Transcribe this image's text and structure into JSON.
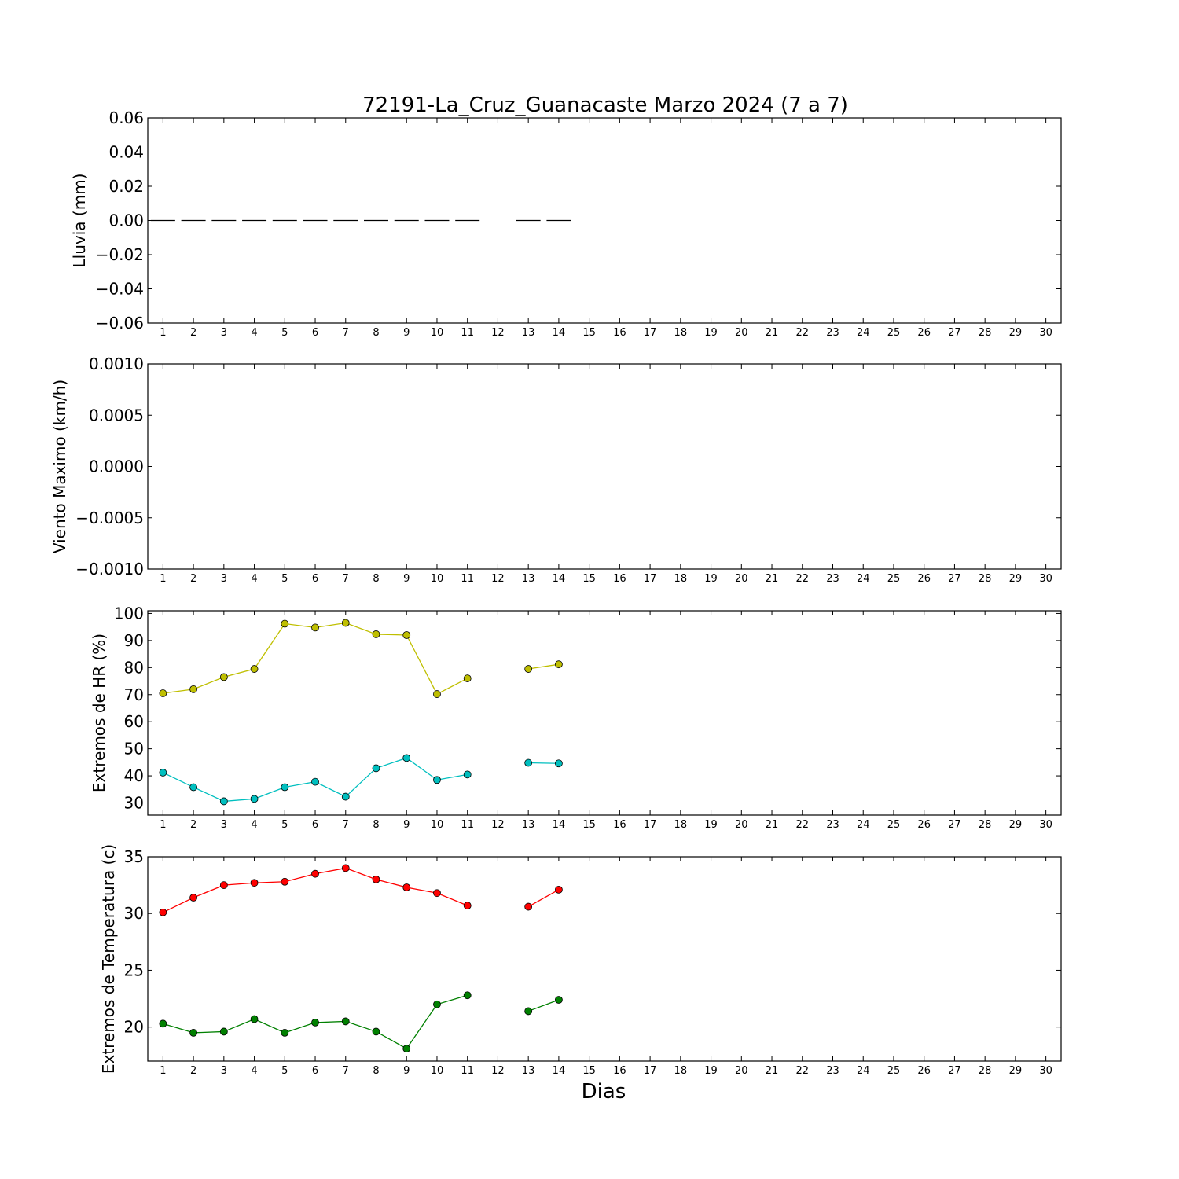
{
  "title": "72191-La_Cruz_Guanacaste Marzo 2024  (7 a 7)",
  "xlabel": "Dias",
  "chart_data": [
    {
      "type": "bar",
      "ylabel": "Lluvia (mm)",
      "ylim": [
        -0.06,
        0.06
      ],
      "yticks": [
        0.06,
        0.04,
        0.02,
        0.0,
        -0.02,
        -0.04,
        -0.06
      ],
      "ytick_labels": [
        "0.06",
        "0.04",
        "0.02",
        "0.00",
        "−0.02",
        "−0.04",
        "−0.06"
      ],
      "x": [
        1,
        2,
        3,
        4,
        5,
        6,
        7,
        8,
        9,
        10,
        11,
        12,
        13,
        14
      ],
      "series": [
        {
          "color": "#000000",
          "values": [
            0,
            0,
            0,
            0,
            0,
            0,
            0,
            0,
            0,
            0,
            0,
            null,
            0,
            0
          ]
        }
      ]
    },
    {
      "type": "line",
      "ylabel": "Viento Maximo (km/h)",
      "ylim": [
        -0.001,
        0.001
      ],
      "yticks": [
        0.001,
        0.0005,
        0.0,
        -0.0005,
        -0.001
      ],
      "ytick_labels": [
        "0.0010",
        "0.0005",
        "0.0000",
        "−0.0005",
        "−0.0010"
      ],
      "series": []
    },
    {
      "type": "line",
      "ylabel": "Extremos de HR (%)",
      "ylim": [
        25.5,
        101
      ],
      "yticks": [
        100,
        90,
        80,
        70,
        60,
        50,
        40,
        30
      ],
      "ytick_labels": [
        "100",
        "90",
        "80",
        "70",
        "60",
        "50",
        "40",
        "30"
      ],
      "x": [
        1,
        2,
        3,
        4,
        5,
        6,
        7,
        8,
        9,
        10,
        11,
        12,
        13,
        14
      ],
      "series": [
        {
          "color": "#bfbf00",
          "values": [
            70.5,
            72,
            76.5,
            79.5,
            96.2,
            94.8,
            96.5,
            92.3,
            92,
            70.2,
            76,
            null,
            79.5,
            81.2
          ]
        },
        {
          "color": "#00bfbf",
          "values": [
            41.2,
            35.8,
            30.6,
            31.5,
            35.8,
            37.8,
            32.3,
            42.8,
            46.6,
            38.5,
            40.5,
            null,
            44.8,
            44.6
          ]
        }
      ]
    },
    {
      "type": "line",
      "ylabel": "Extremos de Temperatura (c)",
      "ylim": [
        17,
        35
      ],
      "yticks": [
        35,
        30,
        25,
        20
      ],
      "ytick_labels": [
        "35",
        "30",
        "25",
        "20"
      ],
      "x": [
        1,
        2,
        3,
        4,
        5,
        6,
        7,
        8,
        9,
        10,
        11,
        12,
        13,
        14
      ],
      "series": [
        {
          "color": "#ff0000",
          "values": [
            30.1,
            31.4,
            32.5,
            32.7,
            32.8,
            33.5,
            34,
            33,
            32.3,
            31.8,
            30.7,
            null,
            30.6,
            32.1
          ]
        },
        {
          "color": "#008000",
          "values": [
            20.3,
            19.5,
            19.6,
            20.7,
            19.5,
            20.4,
            20.5,
            19.6,
            18.1,
            22,
            22.8,
            null,
            21.4,
            22.4
          ]
        }
      ]
    }
  ],
  "xticks": [
    "1",
    "2",
    "3",
    "4",
    "5",
    "6",
    "7",
    "8",
    "9",
    "10",
    "11",
    "12",
    "13",
    "14",
    "15",
    "16",
    "17",
    "18",
    "19",
    "20",
    "21",
    "22",
    "23",
    "24",
    "25",
    "26",
    "27",
    "28",
    "29",
    "30"
  ]
}
